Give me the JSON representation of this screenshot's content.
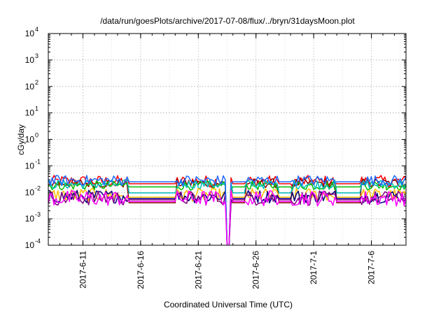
{
  "chart_data": {
    "type": "line",
    "title": "/data/run/goesPlots/archive/2017-07-08/flux/../bryn/31daysMoon.plot",
    "xlabel": "Coordinated Universal Time (UTC)",
    "ylabel": "cGy/day",
    "yscale": "log",
    "ylim": [
      0.0001,
      10000
    ],
    "xlim": [
      "2017-06-08",
      "2017-07-09"
    ],
    "grid": true,
    "x_ticks": [
      "2017-6-11",
      "2017-6-16",
      "2017-6-21",
      "2017-6-26",
      "2017-7-1",
      "2017-7-6"
    ],
    "y_ticks": [
      {
        "value": 0.0001,
        "base": "10",
        "exp": "-4"
      },
      {
        "value": 0.001,
        "base": "10",
        "exp": "-3"
      },
      {
        "value": 0.01,
        "base": "10",
        "exp": "-2"
      },
      {
        "value": 0.1,
        "base": "10",
        "exp": "-1"
      },
      {
        "value": 1,
        "base": "10",
        "exp": "0"
      },
      {
        "value": 10,
        "base": "10",
        "exp": "1"
      },
      {
        "value": 100,
        "base": "10",
        "exp": "2"
      },
      {
        "value": 1000,
        "base": "10",
        "exp": "3"
      },
      {
        "value": 10000,
        "base": "10",
        "exp": "4"
      }
    ],
    "series": [
      {
        "color": "#ff0000",
        "base": 0.026,
        "flat": 0.021,
        "noise": 0.45
      },
      {
        "color": "#8b0000",
        "base": 0.022,
        "flat": 0.004,
        "noise": 0.35
      },
      {
        "color": "#00c000",
        "base": 0.018,
        "flat": 0.016,
        "noise": 0.35
      },
      {
        "color": "#00c0c0",
        "base": 0.02,
        "flat": 0.0095,
        "noise": 0.35
      },
      {
        "color": "#ffc000",
        "base": 0.008,
        "flat": 0.0065,
        "noise": 0.5
      },
      {
        "color": "#000080",
        "base": 0.007,
        "flat": 0.0058,
        "noise": 0.5
      },
      {
        "color": "#800080",
        "base": 0.006,
        "flat": 0.0052,
        "noise": 0.55
      },
      {
        "color": "#1e6bff",
        "base": 0.028,
        "flat": 0.025,
        "noise": 0.4
      },
      {
        "color": "#ff00ff",
        "base": 0.006,
        "flat": 0.0045,
        "noise": 0.6
      }
    ],
    "flat_segments": [
      [
        "2017-06-15",
        "2017-06-19"
      ],
      [
        "2017-06-24",
        "2017-06-25"
      ],
      [
        "2017-06-28",
        "2017-06-29"
      ],
      [
        "2017-07-03",
        "2017-07-05"
      ]
    ],
    "data_gap": [
      "2017-06-23",
      "2017-06-24"
    ]
  }
}
